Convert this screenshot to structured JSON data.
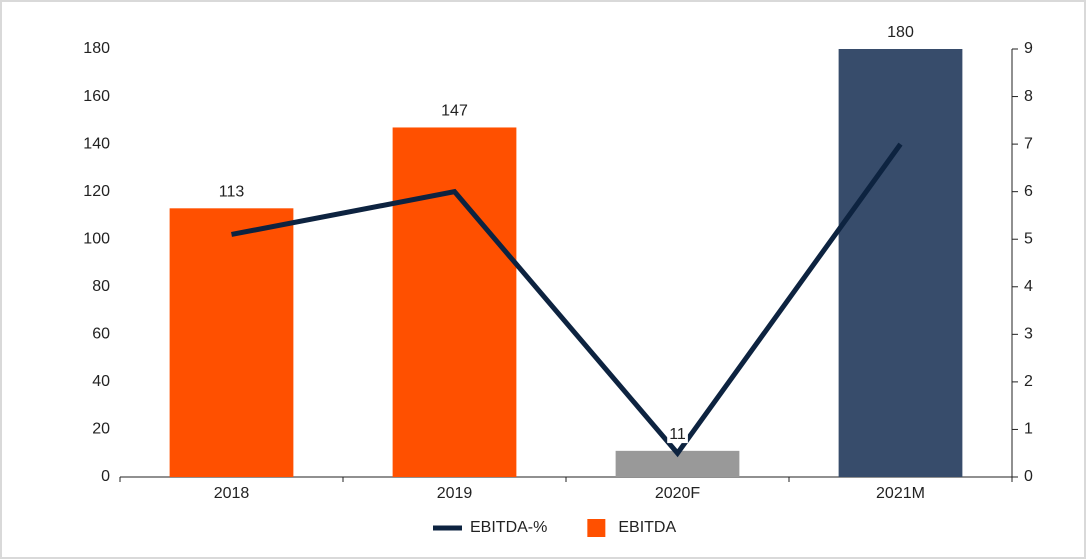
{
  "chart_data": {
    "type": "bar",
    "categories": [
      "2018",
      "2019",
      "2020F",
      "2021M"
    ],
    "series": [
      {
        "name": "EBITDA-%",
        "type": "line",
        "axis": "y2",
        "color": "#0d2340",
        "values": [
          5.1,
          6.0,
          0.5,
          7.0
        ]
      },
      {
        "name": "EBITDA",
        "type": "bar",
        "color": "#ff5000",
        "colors": [
          "#ff5000",
          "#ff5000",
          "#999999",
          "#374c6b"
        ],
        "values": [
          113,
          147,
          11,
          180
        ]
      }
    ],
    "ylim": [
      0,
      180
    ],
    "yticks": [
      0,
      20,
      40,
      60,
      80,
      100,
      120,
      140,
      160,
      180
    ],
    "y2lim": [
      0,
      9
    ],
    "y2ticks": [
      0,
      1,
      2,
      3,
      4,
      5,
      6,
      7,
      8,
      9
    ],
    "legend": "bottom"
  }
}
